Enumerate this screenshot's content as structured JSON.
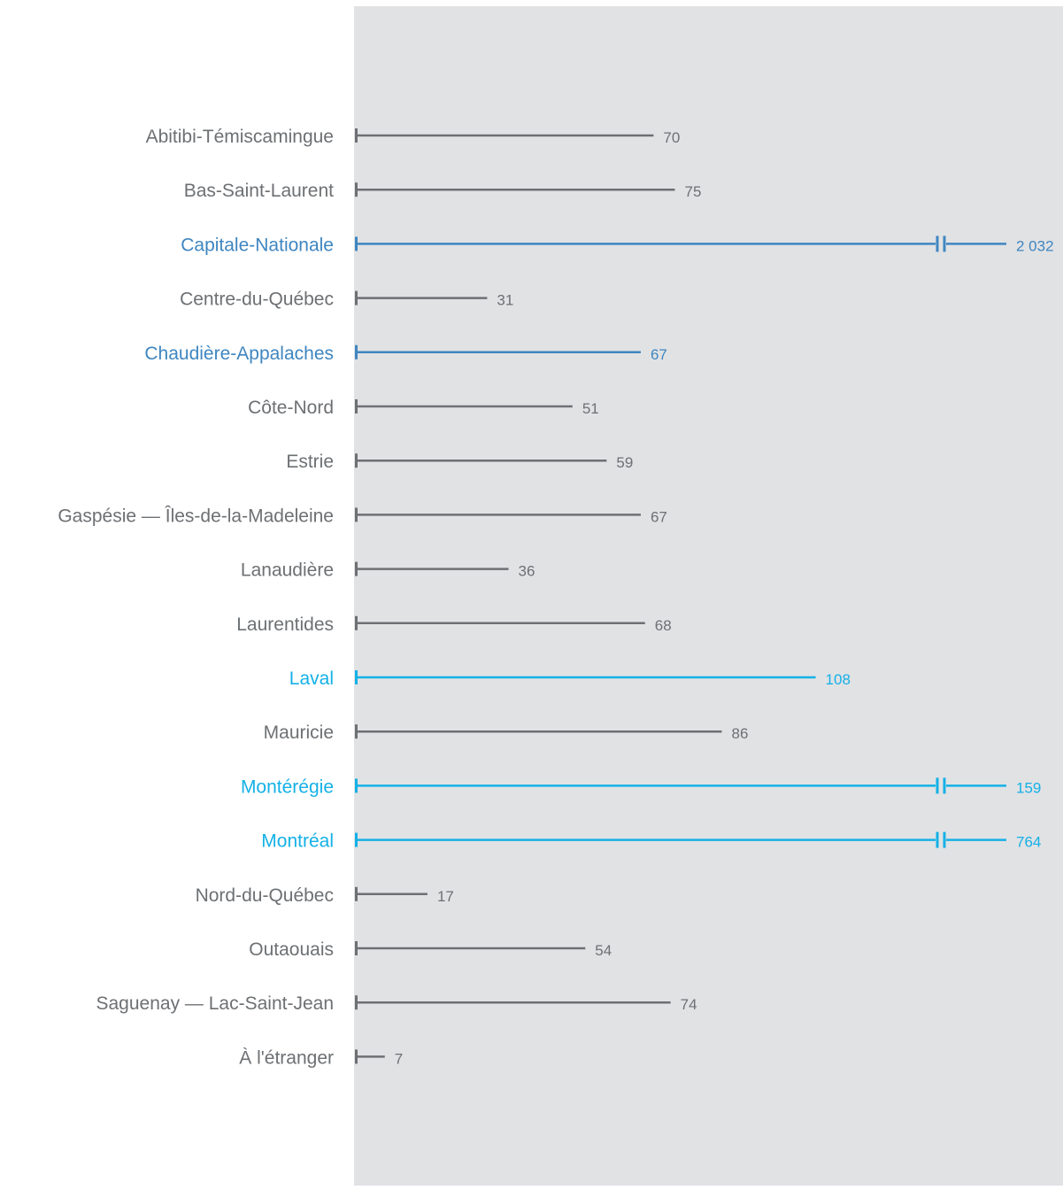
{
  "chart_data": {
    "type": "bar",
    "colors": {
      "panel_background": "#e1e2e4",
      "default": "#6d7073",
      "dark_blue": "#3f86c0",
      "light_blue": "#14b1e6"
    },
    "x_axis_break": true,
    "categories": [
      "Abitibi-Témiscamingue",
      "Bas-Saint-Laurent",
      "Capitale-Nationale",
      "Centre-du-Québec",
      "Chaudière-Appalaches",
      "Côte-Nord",
      "Estrie",
      "Gaspésie — Îles-de-la-Madeleine",
      "Lanaudière",
      "Laurentides",
      "Laval",
      "Mauricie",
      "Montérégie",
      "Montréal",
      "Nord-du-Québec",
      "Outaouais",
      "Saguenay — Lac-Saint-Jean",
      "À l'étranger"
    ],
    "values": [
      70,
      75,
      2032,
      31,
      67,
      51,
      59,
      67,
      36,
      68,
      108,
      86,
      159,
      764,
      17,
      54,
      74,
      7
    ],
    "value_labels": [
      "70",
      "75",
      "2 032",
      "31",
      "67",
      "51",
      "59",
      "67",
      "36",
      "68",
      "108",
      "86",
      "159",
      "764",
      "17",
      "54",
      "74",
      "7"
    ],
    "highlight": [
      "default",
      "default",
      "dark_blue",
      "default",
      "dark_blue",
      "default",
      "default",
      "default",
      "default",
      "default",
      "light_blue",
      "default",
      "light_blue",
      "light_blue",
      "default",
      "default",
      "default",
      "default"
    ]
  }
}
